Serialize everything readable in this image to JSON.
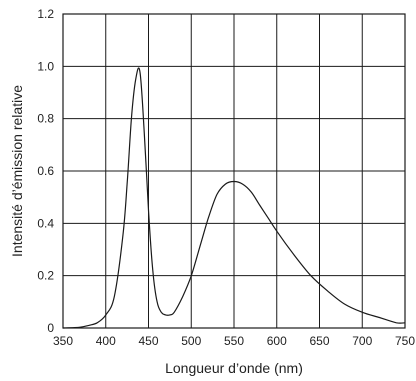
{
  "chart_data": {
    "type": "line",
    "title": "",
    "xlabel": "Longueur d’onde (nm)",
    "ylabel": "Intensité d’émission relative",
    "xlim": [
      350,
      750
    ],
    "ylim": [
      0,
      1.2
    ],
    "grid": true,
    "x_ticks": [
      "350",
      "400",
      "450",
      "500",
      "550",
      "600",
      "650",
      "700",
      "750"
    ],
    "y_ticks": [
      "0",
      "0.2",
      "0.4",
      "0.6",
      "0.8",
      "1.0",
      "1.2"
    ],
    "series": [
      {
        "x": [
          350,
          370,
          380,
          390,
          400,
          410,
          420,
          425,
          430,
          435,
          440,
          445,
          450,
          455,
          460,
          465,
          470,
          475,
          480,
          490,
          500,
          510,
          520,
          530,
          540,
          550,
          560,
          570,
          580,
          590,
          600,
          620,
          640,
          660,
          680,
          700,
          720,
          740,
          750
        ],
        "y": [
          0,
          0.003,
          0.01,
          0.02,
          0.05,
          0.12,
          0.35,
          0.55,
          0.8,
          0.95,
          0.98,
          0.75,
          0.45,
          0.22,
          0.1,
          0.06,
          0.05,
          0.05,
          0.06,
          0.12,
          0.2,
          0.31,
          0.42,
          0.51,
          0.55,
          0.56,
          0.55,
          0.52,
          0.47,
          0.42,
          0.37,
          0.28,
          0.2,
          0.14,
          0.09,
          0.06,
          0.04,
          0.02,
          0.02
        ]
      }
    ]
  }
}
